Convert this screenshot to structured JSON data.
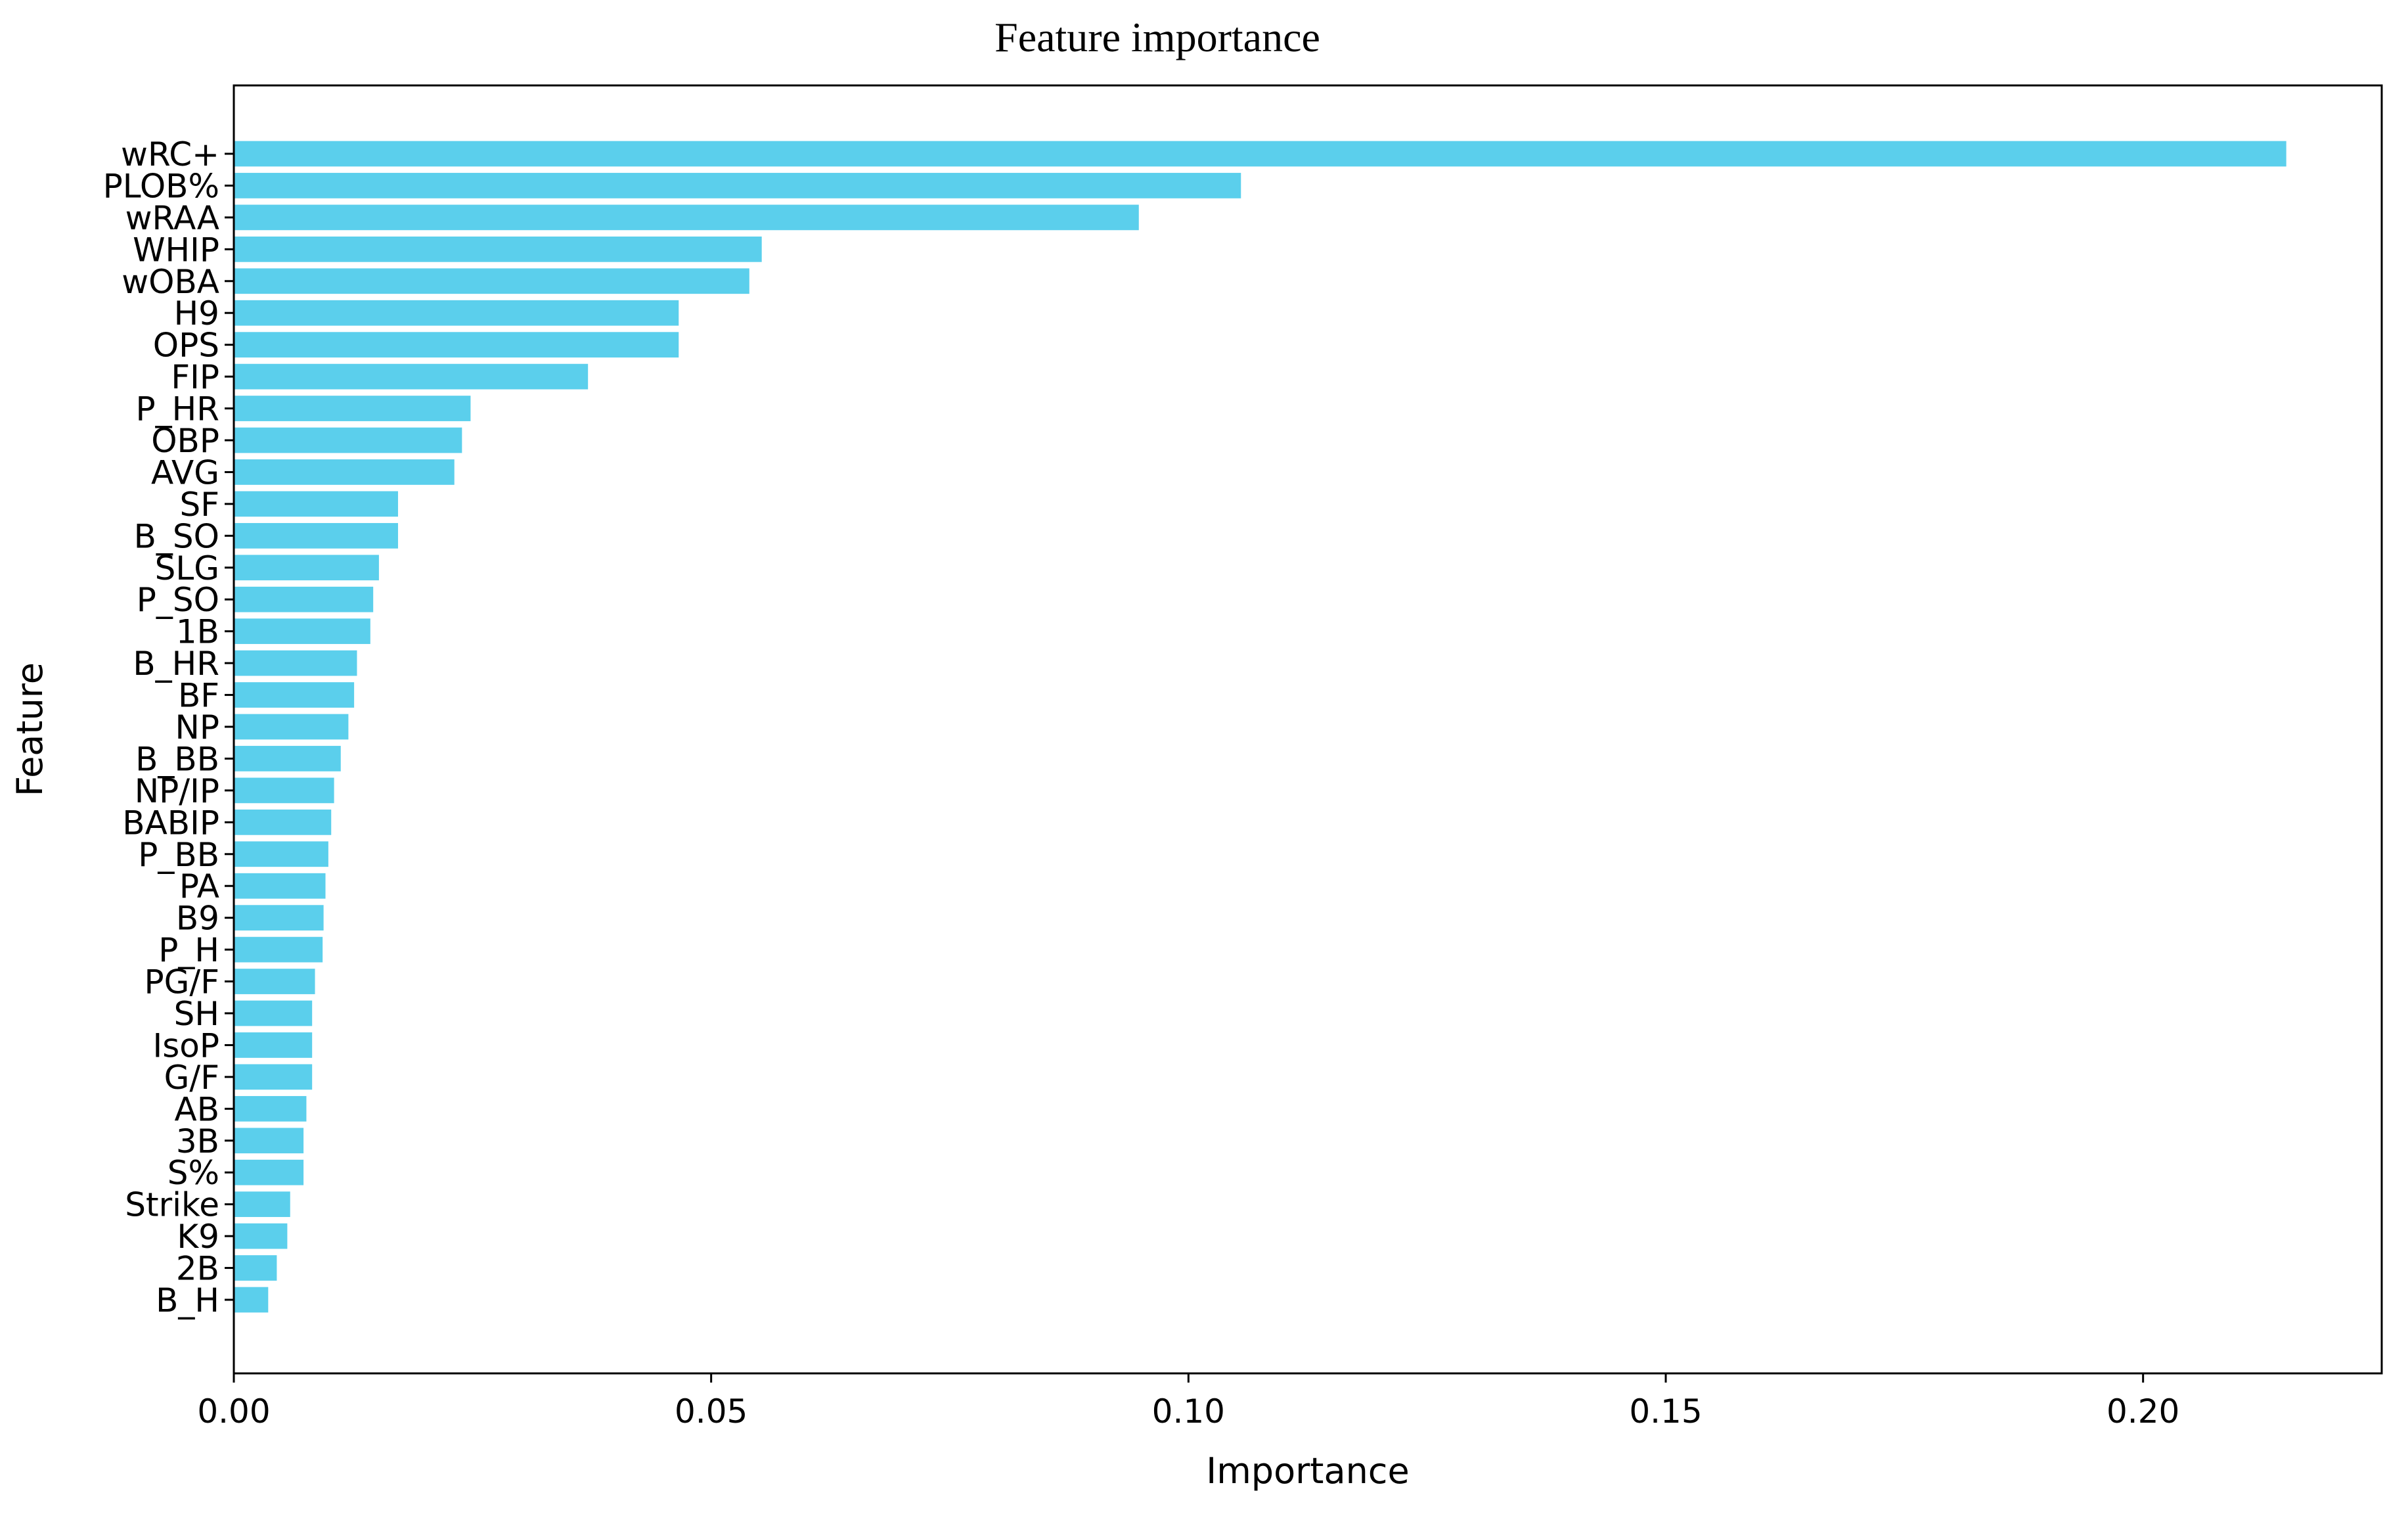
{
  "chart_data": {
    "type": "bar",
    "orientation": "horizontal",
    "title": "Feature importance",
    "xlabel": "Importance",
    "ylabel": "Feature",
    "xlim": [
      0,
      0.225
    ],
    "xticks": [
      "0.00",
      "0.05",
      "0.10",
      "0.15",
      "0.20"
    ],
    "xtick_values": [
      0,
      0.05,
      0.1,
      0.15,
      0.2
    ],
    "grid": false,
    "bar_color": "#5BCFEC",
    "categories": [
      "wRC+",
      "PLOB%",
      "wRAA",
      "WHIP",
      "wOBA",
      "H9",
      "OPS",
      "FIP",
      "P_HR",
      "OBP",
      "AVG",
      "SF",
      "B_SO",
      "SLG",
      "P_SO",
      "1B",
      "B_HR",
      "BF",
      "NP",
      "B_BB",
      "NP/IP",
      "BABIP",
      "P_BB",
      "PA",
      "B9",
      "P_H",
      "PG/F",
      "SH",
      "IsoP",
      "G/F",
      "AB",
      "3B",
      "S%",
      "Strike",
      "K9",
      "2B",
      "B_H"
    ],
    "values": [
      0.215,
      0.1055,
      0.0948,
      0.0553,
      0.054,
      0.0466,
      0.0466,
      0.0371,
      0.0248,
      0.0239,
      0.0231,
      0.0172,
      0.0172,
      0.0152,
      0.0146,
      0.0143,
      0.0129,
      0.0126,
      0.012,
      0.0112,
      0.0105,
      0.0102,
      0.0099,
      0.0096,
      0.0094,
      0.0093,
      0.0085,
      0.0082,
      0.0082,
      0.0082,
      0.0076,
      0.0073,
      0.0073,
      0.0059,
      0.0056,
      0.0045,
      0.0036
    ]
  }
}
